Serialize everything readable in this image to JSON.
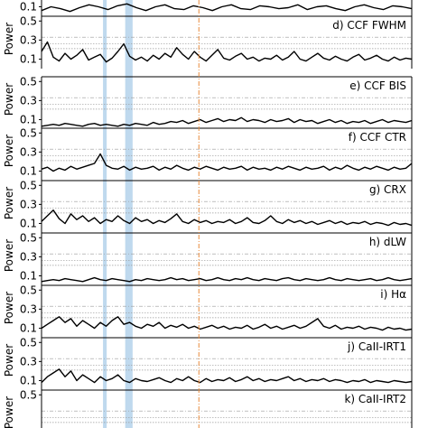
{
  "chart_data": {
    "type": "line",
    "ylabel": "Power",
    "yticks": [
      0.1,
      0.3,
      0.5
    ],
    "ylim": [
      0,
      0.55
    ],
    "frequency_range": [
      0,
      1
    ],
    "highlight_bands": [
      {
        "name": "band-1",
        "from": 0.166,
        "to": 0.176,
        "color": "#a9cce8"
      },
      {
        "name": "band-2",
        "from": 0.226,
        "to": 0.246,
        "color": "#a9cce8"
      }
    ],
    "reference_line": {
      "at": 0.425,
      "color": "#e88a3c"
    },
    "fap_levels": [
      0.21,
      0.26,
      0.33
    ],
    "series_color": "#000000",
    "panels": [
      {
        "label": "",
        "ticks": [
          0.1
        ],
        "values": [
          0.06,
          0.1,
          0.08,
          0.05,
          0.09,
          0.12,
          0.1,
          0.07,
          0.11,
          0.13,
          0.09,
          0.06,
          0.1,
          0.12,
          0.08,
          0.07,
          0.11,
          0.09,
          0.06,
          0.1,
          0.12,
          0.08,
          0.07,
          0.11,
          0.1,
          0.08,
          0.09,
          0.12,
          0.07,
          0.1,
          0.11,
          0.08,
          0.06,
          0.1,
          0.12,
          0.09,
          0.07,
          0.11,
          0.1,
          0.08
        ]
      },
      {
        "label": "d) CCF FWHM",
        "ticks": [
          0.5,
          0.3,
          0.1
        ],
        "values": [
          0.18,
          0.28,
          0.12,
          0.08,
          0.16,
          0.1,
          0.14,
          0.2,
          0.09,
          0.12,
          0.15,
          0.07,
          0.11,
          0.18,
          0.26,
          0.13,
          0.09,
          0.12,
          0.08,
          0.14,
          0.1,
          0.16,
          0.12,
          0.22,
          0.15,
          0.1,
          0.18,
          0.12,
          0.08,
          0.14,
          0.2,
          0.11,
          0.09,
          0.13,
          0.16,
          0.1,
          0.12,
          0.08,
          0.11,
          0.1,
          0.14,
          0.09,
          0.12,
          0.18,
          0.1,
          0.08,
          0.12,
          0.16,
          0.11,
          0.09,
          0.13,
          0.1,
          0.08,
          0.12,
          0.15,
          0.09,
          0.11,
          0.14,
          0.1,
          0.08,
          0.12,
          0.09,
          0.11,
          0.1
        ]
      },
      {
        "label": "e) CCF BIS",
        "ticks": [
          0.5,
          0.3,
          0.1
        ],
        "values": [
          0.03,
          0.04,
          0.05,
          0.04,
          0.06,
          0.05,
          0.04,
          0.03,
          0.05,
          0.06,
          0.04,
          0.05,
          0.04,
          0.03,
          0.05,
          0.04,
          0.06,
          0.05,
          0.04,
          0.07,
          0.05,
          0.06,
          0.08,
          0.07,
          0.09,
          0.06,
          0.08,
          0.1,
          0.07,
          0.09,
          0.11,
          0.08,
          0.1,
          0.09,
          0.12,
          0.08,
          0.1,
          0.09,
          0.07,
          0.1,
          0.08,
          0.09,
          0.11,
          0.07,
          0.1,
          0.08,
          0.09,
          0.06,
          0.08,
          0.1,
          0.07,
          0.09,
          0.06,
          0.08,
          0.07,
          0.09,
          0.06,
          0.08,
          0.1,
          0.07,
          0.09,
          0.08,
          0.07,
          0.09
        ]
      },
      {
        "label": "f) CCF CTR",
        "ticks": [
          0.5,
          0.3,
          0.1
        ],
        "values": [
          0.12,
          0.14,
          0.1,
          0.13,
          0.11,
          0.15,
          0.12,
          0.14,
          0.16,
          0.18,
          0.28,
          0.16,
          0.13,
          0.12,
          0.15,
          0.11,
          0.14,
          0.12,
          0.13,
          0.15,
          0.11,
          0.14,
          0.12,
          0.16,
          0.13,
          0.11,
          0.14,
          0.12,
          0.15,
          0.13,
          0.11,
          0.14,
          0.12,
          0.13,
          0.15,
          0.11,
          0.14,
          0.12,
          0.13,
          0.11,
          0.14,
          0.12,
          0.15,
          0.13,
          0.11,
          0.14,
          0.12,
          0.13,
          0.15,
          0.11,
          0.14,
          0.12,
          0.16,
          0.13,
          0.11,
          0.14,
          0.12,
          0.15,
          0.13,
          0.11,
          0.14,
          0.12,
          0.13,
          0.18
        ]
      },
      {
        "label": "g) CRX",
        "ticks": [
          0.5,
          0.3,
          0.1
        ],
        "values": [
          0.12,
          0.18,
          0.24,
          0.15,
          0.1,
          0.2,
          0.14,
          0.18,
          0.12,
          0.16,
          0.1,
          0.14,
          0.12,
          0.18,
          0.13,
          0.1,
          0.16,
          0.12,
          0.14,
          0.1,
          0.13,
          0.11,
          0.15,
          0.2,
          0.12,
          0.1,
          0.14,
          0.11,
          0.13,
          0.1,
          0.12,
          0.11,
          0.14,
          0.1,
          0.12,
          0.16,
          0.11,
          0.1,
          0.13,
          0.18,
          0.12,
          0.1,
          0.14,
          0.11,
          0.13,
          0.1,
          0.12,
          0.09,
          0.11,
          0.13,
          0.1,
          0.12,
          0.09,
          0.11,
          0.1,
          0.12,
          0.09,
          0.11,
          0.1,
          0.08,
          0.11,
          0.09,
          0.1,
          0.08
        ]
      },
      {
        "label": "h) dLW",
        "ticks": [
          0.5,
          0.3,
          0.1
        ],
        "values": [
          0.04,
          0.05,
          0.06,
          0.05,
          0.07,
          0.06,
          0.05,
          0.04,
          0.06,
          0.08,
          0.06,
          0.05,
          0.07,
          0.06,
          0.05,
          0.04,
          0.06,
          0.05,
          0.07,
          0.06,
          0.05,
          0.06,
          0.08,
          0.06,
          0.07,
          0.05,
          0.06,
          0.07,
          0.05,
          0.06,
          0.08,
          0.06,
          0.05,
          0.07,
          0.06,
          0.08,
          0.06,
          0.05,
          0.07,
          0.06,
          0.05,
          0.07,
          0.08,
          0.06,
          0.05,
          0.07,
          0.06,
          0.05,
          0.06,
          0.08,
          0.06,
          0.05,
          0.07,
          0.06,
          0.05,
          0.06,
          0.07,
          0.05,
          0.06,
          0.08,
          0.06,
          0.05,
          0.06,
          0.07
        ]
      },
      {
        "label": "i) Hα",
        "ticks": [
          0.5,
          0.3,
          0.1
        ],
        "values": [
          0.1,
          0.14,
          0.18,
          0.22,
          0.16,
          0.2,
          0.12,
          0.18,
          0.14,
          0.1,
          0.16,
          0.12,
          0.18,
          0.22,
          0.14,
          0.16,
          0.12,
          0.1,
          0.14,
          0.12,
          0.16,
          0.1,
          0.13,
          0.11,
          0.14,
          0.1,
          0.12,
          0.09,
          0.11,
          0.13,
          0.1,
          0.12,
          0.09,
          0.11,
          0.1,
          0.13,
          0.09,
          0.11,
          0.14,
          0.1,
          0.12,
          0.09,
          0.11,
          0.13,
          0.1,
          0.12,
          0.16,
          0.2,
          0.12,
          0.1,
          0.13,
          0.09,
          0.11,
          0.1,
          0.12,
          0.09,
          0.11,
          0.1,
          0.08,
          0.11,
          0.09,
          0.1,
          0.08,
          0.09
        ]
      },
      {
        "label": "j) CaII-IRT1",
        "ticks": [
          0.5,
          0.3,
          0.1
        ],
        "values": [
          0.08,
          0.14,
          0.18,
          0.22,
          0.14,
          0.2,
          0.1,
          0.16,
          0.12,
          0.08,
          0.14,
          0.1,
          0.12,
          0.16,
          0.1,
          0.08,
          0.12,
          0.1,
          0.09,
          0.11,
          0.13,
          0.1,
          0.08,
          0.12,
          0.1,
          0.14,
          0.1,
          0.08,
          0.12,
          0.09,
          0.11,
          0.1,
          0.13,
          0.09,
          0.11,
          0.14,
          0.1,
          0.12,
          0.09,
          0.11,
          0.1,
          0.12,
          0.14,
          0.1,
          0.12,
          0.09,
          0.11,
          0.1,
          0.12,
          0.09,
          0.11,
          0.1,
          0.08,
          0.1,
          0.09,
          0.11,
          0.08,
          0.1,
          0.09,
          0.08,
          0.1,
          0.09,
          0.08,
          0.09
        ]
      },
      {
        "label": "k) CaII-IRT2",
        "ticks": [
          0.5
        ],
        "values": []
      }
    ]
  }
}
